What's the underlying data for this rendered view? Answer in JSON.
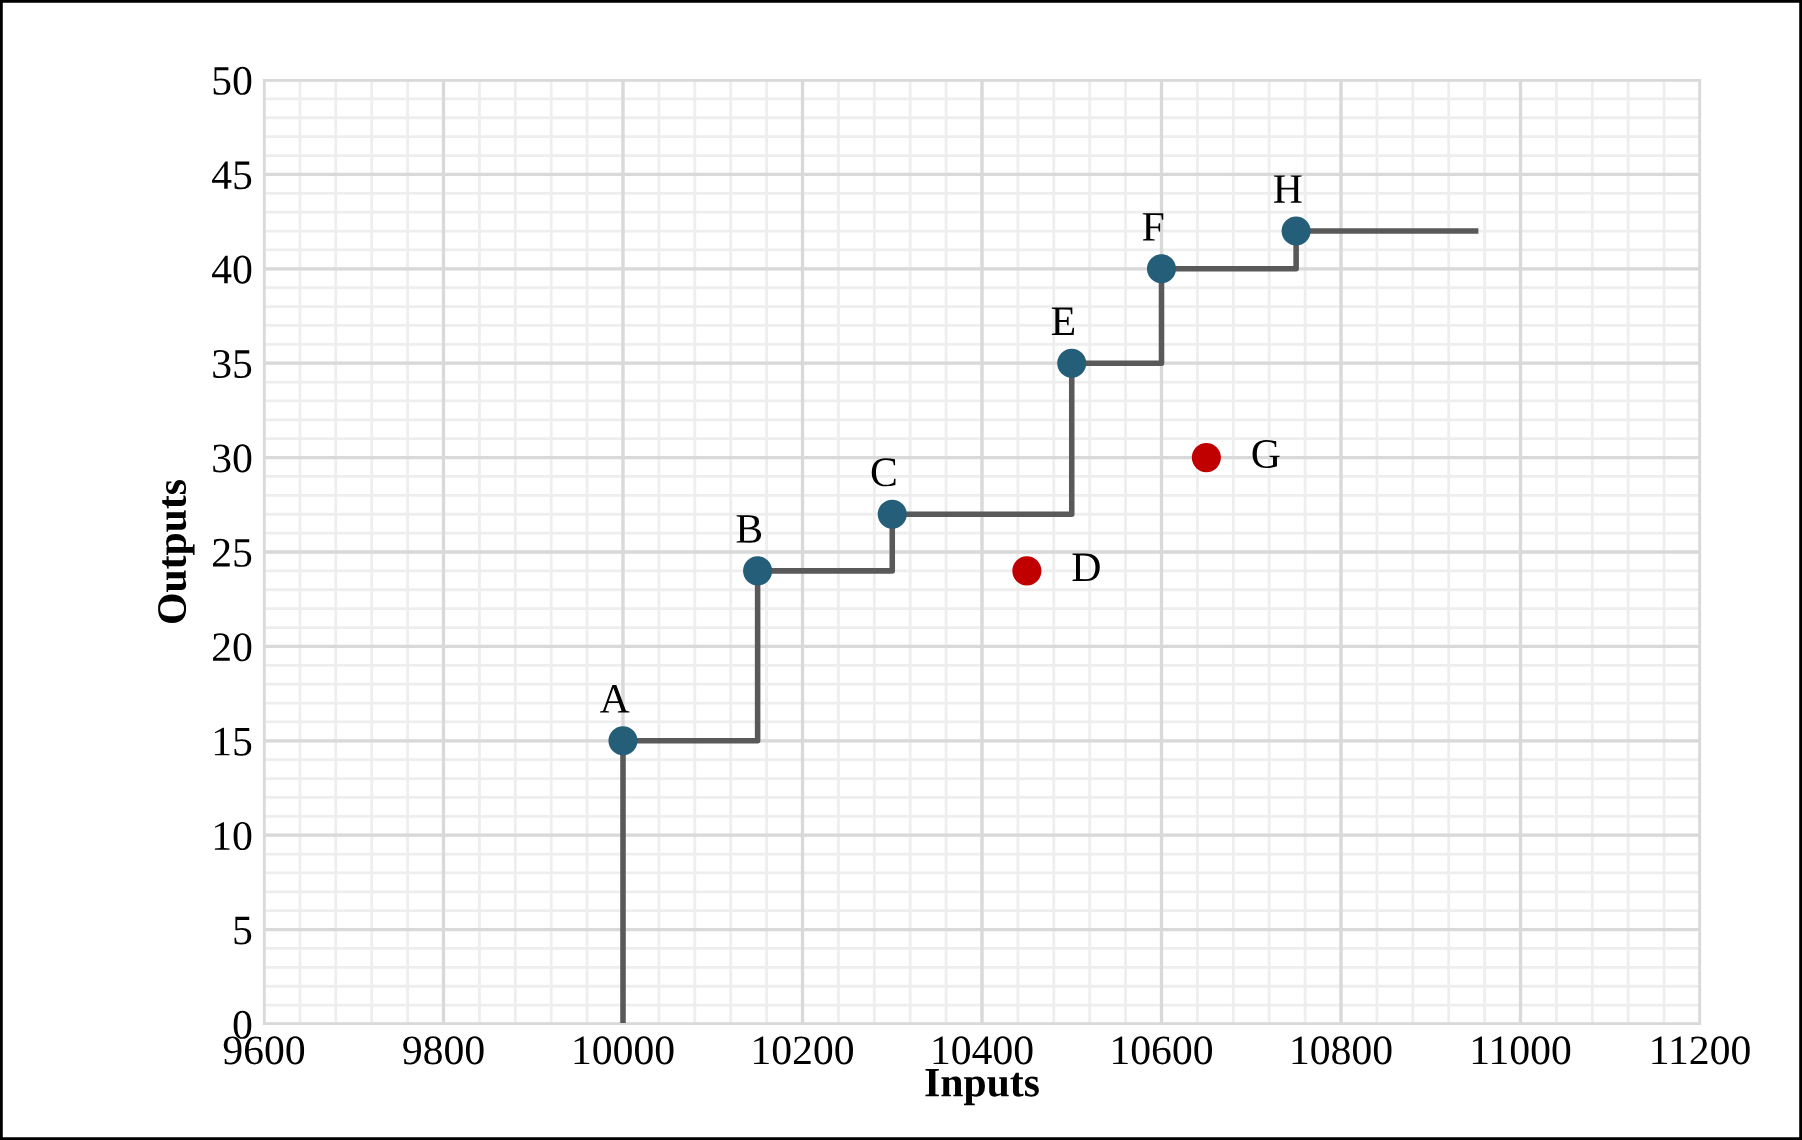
{
  "chart_data": {
    "type": "scatter",
    "xlabel": "Inputs",
    "ylabel": "Outputs",
    "xlim": [
      9600,
      11200
    ],
    "xticks": [
      9600,
      9800,
      10000,
      10200,
      10400,
      10600,
      10800,
      11000,
      11200
    ],
    "ylim": [
      0,
      50
    ],
    "yticks": [
      0,
      5,
      10,
      15,
      20,
      25,
      30,
      35,
      40,
      45,
      50
    ],
    "grid": true,
    "marker": "circle",
    "series": [
      {
        "type": "step",
        "color": "#595959",
        "marker": "none",
        "x": [
          10000,
          10000,
          10150,
          10300,
          10500,
          10600,
          10750,
          10950
        ],
        "values": [
          0,
          15,
          24,
          27,
          35,
          40,
          42,
          42
        ]
      },
      {
        "color": "#255e79",
        "x": [
          10000,
          10150,
          10300,
          10500,
          10600,
          10750
        ],
        "values": [
          15,
          24,
          27,
          35,
          40,
          42
        ],
        "value_labels": [
          "A",
          "B",
          "C",
          "E",
          "F",
          "H"
        ]
      },
      {
        "color": "#c00000",
        "x": [
          10450,
          10650
        ],
        "values": [
          24,
          30
        ],
        "value_labels": [
          "D",
          "G"
        ]
      }
    ]
  }
}
